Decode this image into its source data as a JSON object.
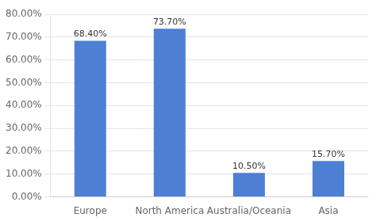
{
  "chart_data": {
    "type": "bar",
    "categories": [
      "Europe",
      "North America",
      "Australia/Oceania",
      "Asia"
    ],
    "values": [
      68.4,
      73.7,
      10.5,
      15.7
    ],
    "value_labels": [
      "68.40%",
      "73.70%",
      "10.50%",
      "15.70%"
    ],
    "data_labels": true,
    "color": "#4d7fd4",
    "ylim": [
      0,
      80
    ],
    "yticks": [
      {
        "value": 0,
        "label": "0.00%"
      },
      {
        "value": 10,
        "label": "10.00%"
      },
      {
        "value": 20,
        "label": "20.00%"
      },
      {
        "value": 30,
        "label": "30.00%"
      },
      {
        "value": 40,
        "label": "40.00%"
      },
      {
        "value": 50,
        "label": "50.00%"
      },
      {
        "value": 60,
        "label": "60.00%"
      },
      {
        "value": 70,
        "label": "70.00%"
      },
      {
        "value": 80,
        "label": "80.00%"
      }
    ],
    "grid": true
  }
}
